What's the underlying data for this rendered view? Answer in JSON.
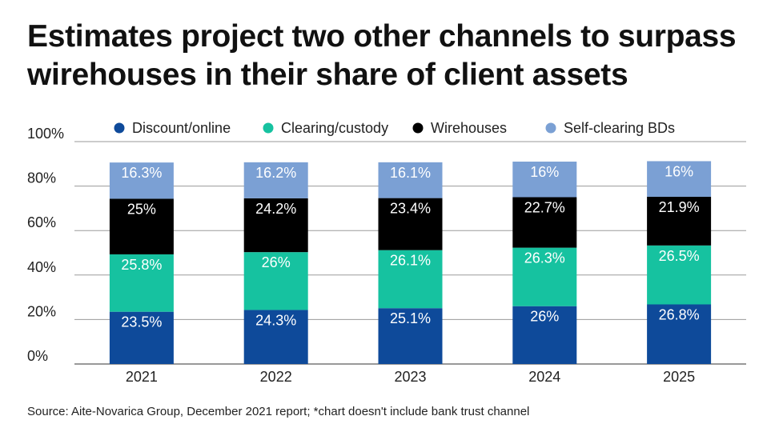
{
  "title": "Estimates project two other channels to surpass wirehouses in their share of client assets",
  "source": "Source: Aite-Novarica Group, December 2021 report; *chart doesn't include bank trust channel",
  "chart_data": {
    "type": "bar",
    "stacked": true,
    "categories": [
      "2021",
      "2022",
      "2023",
      "2024",
      "2025"
    ],
    "series": [
      {
        "name": "Discount/online",
        "color": "#0e4a9a",
        "values": [
          23.5,
          24.3,
          25.1,
          26,
          26.8
        ],
        "labels": [
          "23.5%",
          "24.3%",
          "25.1%",
          "26%",
          "26.8%"
        ]
      },
      {
        "name": "Clearing/custody",
        "color": "#16c2a0",
        "values": [
          25.8,
          26,
          26.1,
          26.3,
          26.5
        ],
        "labels": [
          "25.8%",
          "26%",
          "26.1%",
          "26.3%",
          "26.5%"
        ]
      },
      {
        "name": "Wirehouses",
        "color": "#000000",
        "values": [
          25,
          24.2,
          23.4,
          22.7,
          21.9
        ],
        "labels": [
          "25%",
          "24.2%",
          "23.4%",
          "22.7%",
          "21.9%"
        ]
      },
      {
        "name": "Self-clearing BDs",
        "color": "#7ba0d4",
        "values": [
          16.3,
          16.2,
          16.1,
          16,
          16
        ],
        "labels": [
          "16.3%",
          "16.2%",
          "16.1%",
          "16%",
          "16%"
        ]
      }
    ],
    "yticks": [
      "0%",
      "20%",
      "40%",
      "60%",
      "80%",
      "100%"
    ],
    "ylim": [
      0,
      100
    ],
    "legend": "top",
    "grid": true
  }
}
